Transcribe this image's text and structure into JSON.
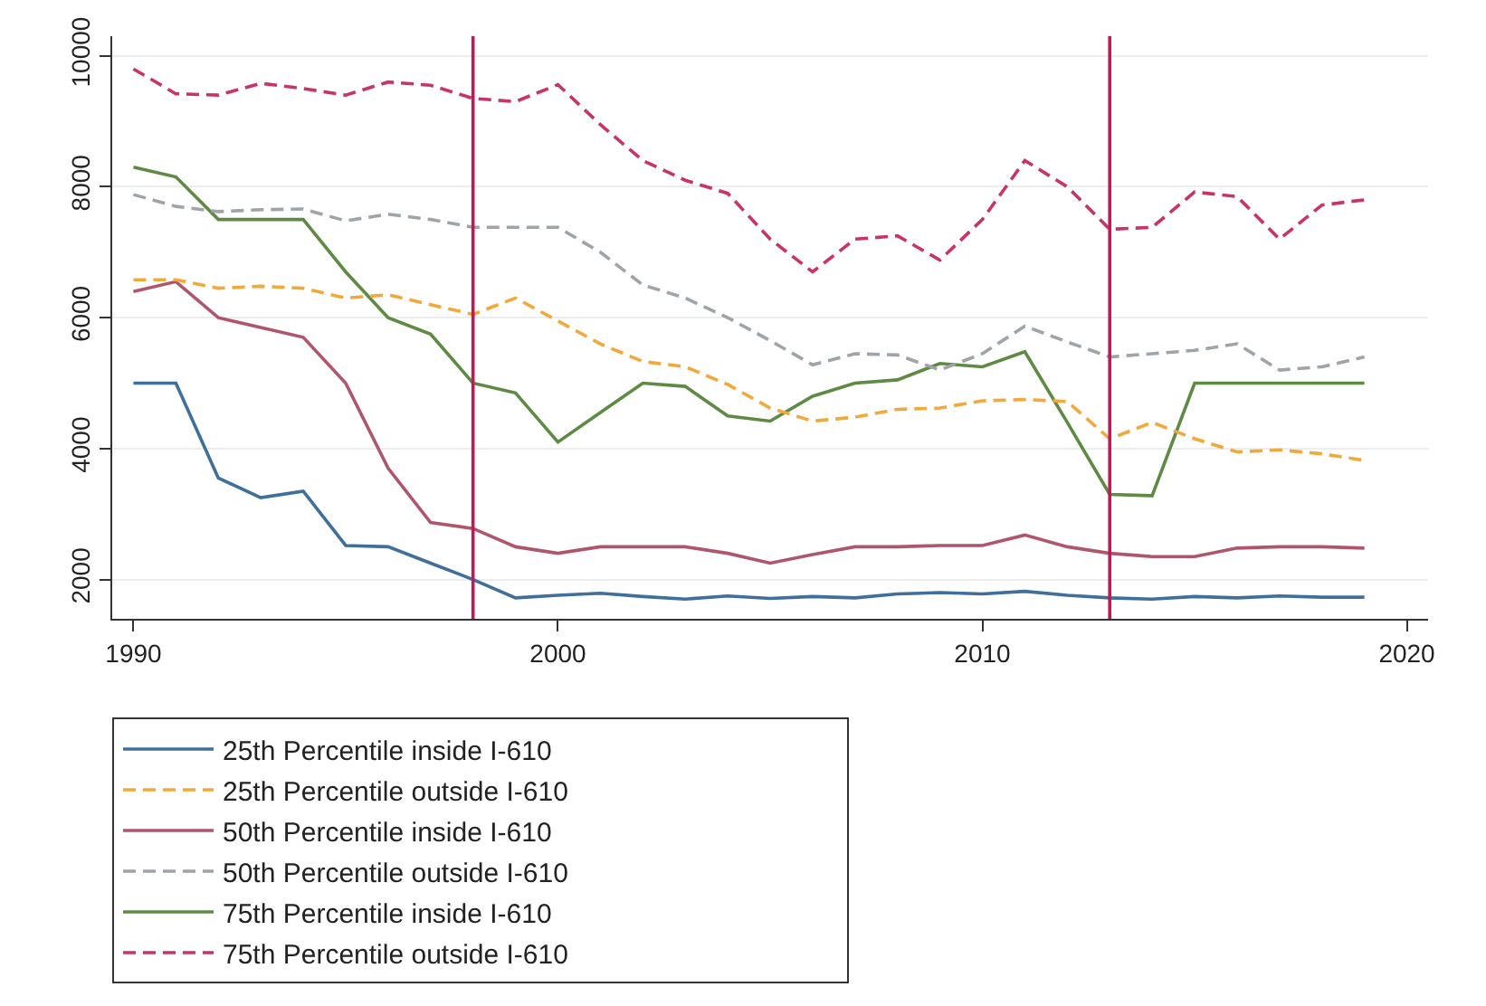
{
  "chart_data": {
    "type": "line",
    "x": [
      1990,
      1991,
      1992,
      1993,
      1994,
      1995,
      1996,
      1997,
      1998,
      1999,
      2000,
      2001,
      2002,
      2003,
      2004,
      2005,
      2006,
      2007,
      2008,
      2009,
      2010,
      2011,
      2012,
      2013,
      2014,
      2015,
      2016,
      2017,
      2018,
      2019
    ],
    "series": [
      {
        "name": "25th Percentile inside I-610",
        "color": "#3f6f9a",
        "line_style": "solid",
        "values": [
          5000,
          5000,
          3550,
          3250,
          3350,
          2520,
          2500,
          2250,
          2000,
          1720,
          1760,
          1790,
          1740,
          1700,
          1750,
          1710,
          1740,
          1720,
          1780,
          1800,
          1780,
          1820,
          1760,
          1720,
          1700,
          1740,
          1720,
          1750,
          1730,
          1730
        ]
      },
      {
        "name": "50th Percentile inside I-610",
        "color": "#b0566c",
        "line_style": "solid",
        "values": [
          6400,
          6550,
          6000,
          5850,
          5700,
          5000,
          3700,
          2870,
          2780,
          2500,
          2400,
          2500,
          2500,
          2500,
          2400,
          2250,
          2380,
          2500,
          2500,
          2520,
          2520,
          2680,
          2500,
          2400,
          2350,
          2350,
          2480,
          2500,
          2500,
          2480
        ]
      },
      {
        "name": "75th Percentile inside I-610",
        "color": "#5e8a44",
        "line_style": "solid",
        "values": [
          8300,
          8150,
          7500,
          7500,
          7500,
          6700,
          6000,
          5750,
          5000,
          4850,
          4100,
          4550,
          5000,
          4950,
          4500,
          4420,
          4800,
          5000,
          5050,
          5300,
          5250,
          5480,
          4400,
          3300,
          3280,
          5000,
          5000,
          5000,
          5000,
          5000
        ]
      },
      {
        "name": "25th Percentile outside I-610",
        "color": "#f2a93b",
        "line_style": "dashed",
        "values": [
          6580,
          6580,
          6450,
          6480,
          6450,
          6300,
          6350,
          6200,
          6050,
          6300,
          5950,
          5600,
          5330,
          5250,
          4980,
          4620,
          4420,
          4480,
          4600,
          4620,
          4730,
          4750,
          4720,
          4150,
          4400,
          4150,
          3950,
          3980,
          3920,
          3820
        ]
      },
      {
        "name": "50th Percentile outside I-610",
        "color": "#9ea4a8",
        "line_style": "dashed",
        "values": [
          7880,
          7700,
          7620,
          7650,
          7660,
          7480,
          7580,
          7500,
          7380,
          7380,
          7380,
          7000,
          6500,
          6300,
          6000,
          5650,
          5280,
          5450,
          5430,
          5200,
          5450,
          5870,
          5630,
          5400,
          5450,
          5500,
          5600,
          5200,
          5250,
          5400
        ]
      },
      {
        "name": "75th Percentile outside I-610",
        "color": "#c8346a",
        "line_style": "dashed",
        "values": [
          9800,
          9420,
          9400,
          9580,
          9500,
          9400,
          9600,
          9550,
          9350,
          9300,
          9560,
          8950,
          8400,
          8100,
          7900,
          7200,
          6700,
          7200,
          7250,
          6880,
          7500,
          8400,
          8000,
          7350,
          7380,
          7920,
          7850,
          7200,
          7720,
          7800
        ]
      }
    ],
    "xlim": [
      1989.5,
      2020.5
    ],
    "xticks": [
      1990,
      2000,
      2010,
      2020
    ],
    "ylim": [
      1400,
      10300
    ],
    "yticks": [
      2000,
      4000,
      6000,
      8000,
      10000
    ],
    "ref_lines": [
      {
        "axis": "x",
        "value": 1998,
        "color": "#c2185b"
      },
      {
        "axis": "x",
        "value": 2013,
        "color": "#c2185b"
      }
    ],
    "grid": "y",
    "legend": "bottom",
    "marker": "none"
  }
}
